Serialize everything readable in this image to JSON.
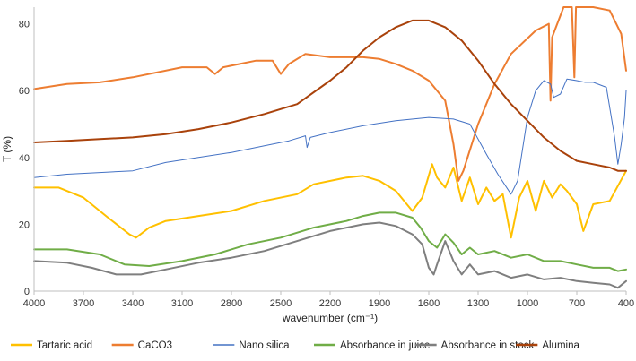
{
  "chart_data": {
    "type": "line",
    "xlabel": "wavenumber (cm⁻¹)",
    "ylabel": "T (%)",
    "xlim": [
      4000,
      400
    ],
    "ylim": [
      0,
      85
    ],
    "x_ticks": [
      4000,
      3700,
      3400,
      3100,
      2800,
      2500,
      2200,
      1900,
      1600,
      1300,
      1000,
      700,
      400
    ],
    "y_ticks": [
      0,
      20,
      40,
      60,
      80
    ],
    "grid": false,
    "legend_position": "bottom",
    "series": [
      {
        "name": "Tartaric acid",
        "color": "#FFC000",
        "width": 2,
        "points": [
          [
            4000,
            31
          ],
          [
            3850,
            31
          ],
          [
            3700,
            28
          ],
          [
            3550,
            22
          ],
          [
            3420,
            17
          ],
          [
            3380,
            16
          ],
          [
            3300,
            19
          ],
          [
            3200,
            21
          ],
          [
            3000,
            22.5
          ],
          [
            2800,
            24
          ],
          [
            2600,
            27
          ],
          [
            2400,
            29
          ],
          [
            2300,
            32
          ],
          [
            2100,
            34
          ],
          [
            2000,
            34.5
          ],
          [
            1900,
            33
          ],
          [
            1800,
            30
          ],
          [
            1700,
            24
          ],
          [
            1640,
            28
          ],
          [
            1580,
            38
          ],
          [
            1550,
            34
          ],
          [
            1500,
            31
          ],
          [
            1450,
            37
          ],
          [
            1400,
            27
          ],
          [
            1350,
            34
          ],
          [
            1300,
            26
          ],
          [
            1250,
            31
          ],
          [
            1200,
            27
          ],
          [
            1150,
            29
          ],
          [
            1100,
            16
          ],
          [
            1050,
            28
          ],
          [
            1000,
            33
          ],
          [
            950,
            24
          ],
          [
            900,
            33
          ],
          [
            850,
            28
          ],
          [
            800,
            32
          ],
          [
            760,
            30
          ],
          [
            700,
            26
          ],
          [
            660,
            18
          ],
          [
            600,
            26
          ],
          [
            500,
            27
          ],
          [
            400,
            36
          ]
        ]
      },
      {
        "name": "CaCO3",
        "color": "#ED7D31",
        "width": 2,
        "points": [
          [
            4000,
            60.5
          ],
          [
            3800,
            62
          ],
          [
            3600,
            62.5
          ],
          [
            3400,
            64
          ],
          [
            3100,
            67
          ],
          [
            2950,
            67
          ],
          [
            2900,
            65
          ],
          [
            2850,
            67
          ],
          [
            2650,
            69
          ],
          [
            2550,
            69
          ],
          [
            2500,
            65
          ],
          [
            2450,
            68
          ],
          [
            2350,
            71
          ],
          [
            2200,
            70
          ],
          [
            2000,
            70
          ],
          [
            1900,
            69.5
          ],
          [
            1800,
            68
          ],
          [
            1700,
            66
          ],
          [
            1600,
            63
          ],
          [
            1500,
            57
          ],
          [
            1450,
            44
          ],
          [
            1420,
            33
          ],
          [
            1390,
            36
          ],
          [
            1300,
            50
          ],
          [
            1200,
            62
          ],
          [
            1100,
            71
          ],
          [
            950,
            78
          ],
          [
            870,
            80
          ],
          [
            860,
            57
          ],
          [
            850,
            76
          ],
          [
            780,
            85
          ],
          [
            730,
            85
          ],
          [
            715,
            64
          ],
          [
            705,
            85
          ],
          [
            600,
            85
          ],
          [
            500,
            84
          ],
          [
            430,
            77
          ],
          [
            400,
            66
          ]
        ]
      },
      {
        "name": "Nano silica",
        "color": "#4472C4",
        "width": 1,
        "points": [
          [
            4000,
            34
          ],
          [
            3800,
            35
          ],
          [
            3600,
            35.5
          ],
          [
            3400,
            36
          ],
          [
            3200,
            38.5
          ],
          [
            3000,
            40
          ],
          [
            2800,
            41.5
          ],
          [
            2600,
            43.5
          ],
          [
            2450,
            45
          ],
          [
            2350,
            46.5
          ],
          [
            2340,
            43
          ],
          [
            2320,
            46
          ],
          [
            2200,
            47.5
          ],
          [
            2000,
            49.5
          ],
          [
            1800,
            51
          ],
          [
            1600,
            52
          ],
          [
            1450,
            51.5
          ],
          [
            1350,
            50
          ],
          [
            1250,
            41
          ],
          [
            1180,
            35
          ],
          [
            1100,
            29
          ],
          [
            1060,
            33
          ],
          [
            1000,
            52
          ],
          [
            950,
            60
          ],
          [
            900,
            63
          ],
          [
            860,
            62
          ],
          [
            840,
            58
          ],
          [
            800,
            59
          ],
          [
            760,
            63.5
          ],
          [
            700,
            63
          ],
          [
            650,
            62.5
          ],
          [
            600,
            62.5
          ],
          [
            520,
            61
          ],
          [
            470,
            46
          ],
          [
            450,
            38
          ],
          [
            430,
            44
          ],
          [
            410,
            52
          ],
          [
            400,
            60
          ]
        ]
      },
      {
        "name": "Absorbance in juice",
        "color": "#70AD47",
        "width": 2,
        "points": [
          [
            4000,
            12.5
          ],
          [
            3800,
            12.5
          ],
          [
            3600,
            11
          ],
          [
            3450,
            8
          ],
          [
            3300,
            7.5
          ],
          [
            3100,
            9
          ],
          [
            2900,
            11
          ],
          [
            2700,
            14
          ],
          [
            2500,
            16
          ],
          [
            2300,
            19
          ],
          [
            2100,
            21
          ],
          [
            2000,
            22.5
          ],
          [
            1900,
            23.5
          ],
          [
            1800,
            23.5
          ],
          [
            1700,
            22
          ],
          [
            1650,
            19
          ],
          [
            1600,
            15
          ],
          [
            1550,
            13
          ],
          [
            1500,
            17
          ],
          [
            1450,
            14.5
          ],
          [
            1400,
            11
          ],
          [
            1350,
            13
          ],
          [
            1300,
            11
          ],
          [
            1200,
            12
          ],
          [
            1100,
            10
          ],
          [
            1000,
            11
          ],
          [
            900,
            9
          ],
          [
            800,
            9
          ],
          [
            700,
            8
          ],
          [
            600,
            7
          ],
          [
            500,
            7
          ],
          [
            450,
            6
          ],
          [
            400,
            6.5
          ]
        ]
      },
      {
        "name": "Absorbance in stock",
        "color": "#7F7F7F",
        "width": 2,
        "points": [
          [
            4000,
            9
          ],
          [
            3800,
            8.5
          ],
          [
            3650,
            7
          ],
          [
            3500,
            5
          ],
          [
            3350,
            5
          ],
          [
            3200,
            6.5
          ],
          [
            3000,
            8.5
          ],
          [
            2800,
            10
          ],
          [
            2600,
            12
          ],
          [
            2400,
            15
          ],
          [
            2200,
            18
          ],
          [
            2000,
            20
          ],
          [
            1900,
            20.5
          ],
          [
            1800,
            19.5
          ],
          [
            1700,
            17
          ],
          [
            1640,
            14
          ],
          [
            1600,
            7
          ],
          [
            1570,
            5
          ],
          [
            1550,
            8
          ],
          [
            1500,
            15
          ],
          [
            1450,
            9
          ],
          [
            1400,
            5
          ],
          [
            1350,
            8
          ],
          [
            1300,
            5
          ],
          [
            1200,
            6
          ],
          [
            1100,
            4
          ],
          [
            1000,
            5
          ],
          [
            900,
            3.5
          ],
          [
            800,
            4
          ],
          [
            700,
            3
          ],
          [
            600,
            2.5
          ],
          [
            500,
            2
          ],
          [
            450,
            1
          ],
          [
            400,
            3
          ]
        ]
      },
      {
        "name": "Alumina",
        "color": "#A9420B",
        "width": 2,
        "points": [
          [
            4000,
            44.5
          ],
          [
            3800,
            45
          ],
          [
            3600,
            45.5
          ],
          [
            3400,
            46
          ],
          [
            3200,
            47
          ],
          [
            3000,
            48.5
          ],
          [
            2800,
            50.5
          ],
          [
            2600,
            53
          ],
          [
            2400,
            56
          ],
          [
            2200,
            63
          ],
          [
            2100,
            67
          ],
          [
            2000,
            72
          ],
          [
            1900,
            76
          ],
          [
            1800,
            79
          ],
          [
            1700,
            81
          ],
          [
            1600,
            81
          ],
          [
            1500,
            79
          ],
          [
            1400,
            75
          ],
          [
            1300,
            69
          ],
          [
            1200,
            62
          ],
          [
            1100,
            56
          ],
          [
            1000,
            51
          ],
          [
            900,
            46
          ],
          [
            800,
            42
          ],
          [
            700,
            39
          ],
          [
            600,
            38
          ],
          [
            500,
            37
          ],
          [
            450,
            36
          ],
          [
            400,
            36
          ]
        ]
      }
    ]
  }
}
